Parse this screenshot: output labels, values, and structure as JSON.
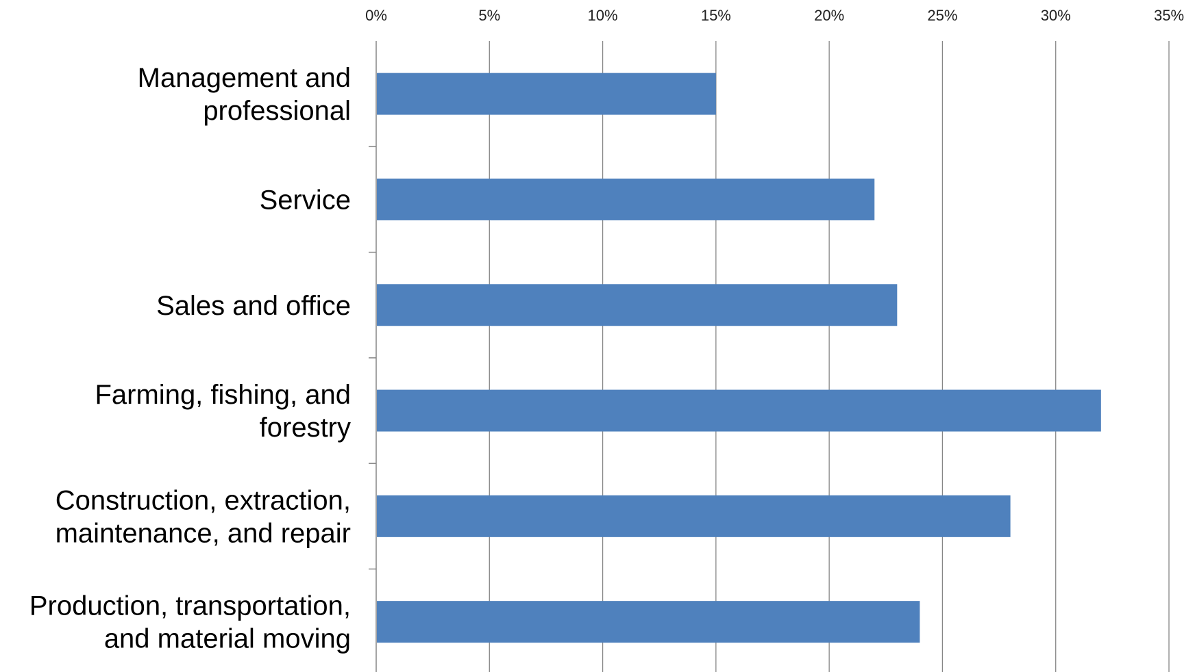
{
  "chart_data": {
    "type": "bar",
    "orientation": "horizontal",
    "title": "",
    "xlabel": "",
    "ylabel": "",
    "categories": [
      [
        "Management and",
        "professional"
      ],
      [
        "Service"
      ],
      [
        "Sales and office"
      ],
      [
        "Farming, fishing, and",
        "forestry"
      ],
      [
        "Construction, extraction,",
        "maintenance, and repair"
      ],
      [
        "Production, transportation,",
        "and material moving"
      ]
    ],
    "values": [
      15,
      22,
      23,
      32,
      28,
      24
    ],
    "value_unit": "%",
    "xlim": [
      0,
      35
    ],
    "ticks": [
      "0%",
      "5%",
      "10%",
      "15%",
      "20%",
      "25%",
      "30%",
      "35%"
    ],
    "tick_values": [
      0,
      5,
      10,
      15,
      20,
      25,
      30,
      35
    ],
    "axis_position": "top",
    "grid": true,
    "legend": "none",
    "colors": {
      "bar": "#4F81BD",
      "grid": "#868686",
      "text": "#000000"
    }
  }
}
